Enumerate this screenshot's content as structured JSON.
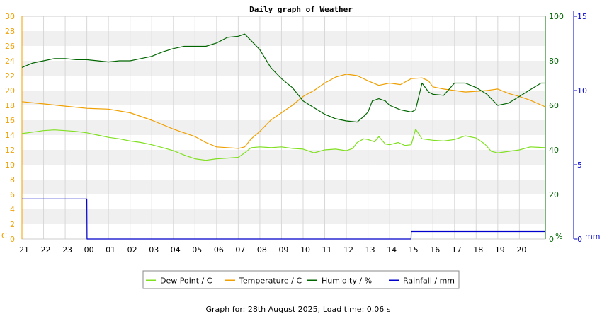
{
  "footer_text": "Graph for: 28th August 2025; Load time: 0.06 s",
  "chart_data": {
    "type": "line",
    "title": "Daily graph of Weather",
    "x": {
      "tick_labels": [
        "21",
        "22",
        "23",
        "00",
        "01",
        "02",
        "03",
        "04",
        "05",
        "06",
        "07",
        "08",
        "09",
        "10",
        "11",
        "12",
        "13",
        "14",
        "15",
        "16",
        "17",
        "18",
        "19",
        "20"
      ],
      "range": [
        0,
        24.2
      ]
    },
    "axes": {
      "left": {
        "unit_label": "C",
        "range": [
          0,
          30
        ],
        "ticks": [
          0,
          2,
          4,
          6,
          8,
          10,
          12,
          14,
          16,
          18,
          20,
          22,
          24,
          26,
          28,
          30
        ],
        "color": "#f0a000"
      },
      "right_1": {
        "unit_label": "%",
        "range": [
          0,
          100
        ],
        "ticks": [
          0,
          20,
          40,
          60,
          80,
          100
        ],
        "color": "#006600"
      },
      "right_2": {
        "unit_label": "mm",
        "range": [
          0,
          15
        ],
        "ticks": [
          0,
          5,
          10,
          15
        ],
        "color": "#0000cc"
      }
    },
    "grid": true,
    "legend_position": "bottom",
    "series": [
      {
        "name": "Dew Point / C",
        "axis": "left",
        "color": "#80e020",
        "points": [
          [
            0,
            14.2
          ],
          [
            0.5,
            14.4
          ],
          [
            1,
            14.6
          ],
          [
            1.5,
            14.7
          ],
          [
            2,
            14.6
          ],
          [
            2.5,
            14.5
          ],
          [
            3,
            14.3
          ],
          [
            3.5,
            14.0
          ],
          [
            4,
            13.7
          ],
          [
            4.5,
            13.5
          ],
          [
            5,
            13.2
          ],
          [
            5.5,
            13.0
          ],
          [
            6,
            12.7
          ],
          [
            6.5,
            12.3
          ],
          [
            7,
            11.9
          ],
          [
            7.5,
            11.3
          ],
          [
            8,
            10.8
          ],
          [
            8.5,
            10.6
          ],
          [
            9,
            10.8
          ],
          [
            9.5,
            10.9
          ],
          [
            10,
            11.0
          ],
          [
            10.3,
            11.6
          ],
          [
            10.6,
            12.3
          ],
          [
            11,
            12.4
          ],
          [
            11.5,
            12.3
          ],
          [
            12,
            12.4
          ],
          [
            12.5,
            12.2
          ],
          [
            13,
            12.1
          ],
          [
            13.5,
            11.6
          ],
          [
            14,
            12.0
          ],
          [
            14.5,
            12.1
          ],
          [
            15,
            11.9
          ],
          [
            15.3,
            12.2
          ],
          [
            15.5,
            13.0
          ],
          [
            15.8,
            13.5
          ],
          [
            16,
            13.4
          ],
          [
            16.3,
            13.1
          ],
          [
            16.5,
            13.8
          ],
          [
            16.8,
            12.8
          ],
          [
            17,
            12.7
          ],
          [
            17.4,
            13.0
          ],
          [
            17.7,
            12.6
          ],
          [
            18,
            12.7
          ],
          [
            18.2,
            14.8
          ],
          [
            18.5,
            13.5
          ],
          [
            19,
            13.3
          ],
          [
            19.5,
            13.2
          ],
          [
            20,
            13.4
          ],
          [
            20.5,
            13.9
          ],
          [
            21,
            13.6
          ],
          [
            21.4,
            12.8
          ],
          [
            21.7,
            11.8
          ],
          [
            22,
            11.6
          ],
          [
            22.5,
            11.8
          ],
          [
            23,
            12.0
          ],
          [
            23.5,
            12.4
          ],
          [
            24.2,
            12.3
          ]
        ]
      },
      {
        "name": "Temperature / C",
        "axis": "left",
        "color": "#f0a000",
        "points": [
          [
            0,
            18.5
          ],
          [
            1,
            18.2
          ],
          [
            2,
            17.9
          ],
          [
            3,
            17.6
          ],
          [
            4,
            17.5
          ],
          [
            5,
            17.0
          ],
          [
            6,
            16.0
          ],
          [
            7,
            14.8
          ],
          [
            8,
            13.8
          ],
          [
            8.5,
            13.0
          ],
          [
            9,
            12.4
          ],
          [
            9.5,
            12.3
          ],
          [
            10,
            12.2
          ],
          [
            10.3,
            12.4
          ],
          [
            10.6,
            13.5
          ],
          [
            11,
            14.5
          ],
          [
            11.5,
            16.0
          ],
          [
            12,
            17.0
          ],
          [
            12.5,
            18.0
          ],
          [
            13,
            19.2
          ],
          [
            13.5,
            20.0
          ],
          [
            14,
            21.0
          ],
          [
            14.5,
            21.8
          ],
          [
            15,
            22.2
          ],
          [
            15.5,
            22.0
          ],
          [
            16,
            21.3
          ],
          [
            16.5,
            20.7
          ],
          [
            17,
            21.0
          ],
          [
            17.5,
            20.8
          ],
          [
            18,
            21.6
          ],
          [
            18.5,
            21.7
          ],
          [
            18.8,
            21.3
          ],
          [
            19,
            20.5
          ],
          [
            19.5,
            20.2
          ],
          [
            20,
            20.0
          ],
          [
            20.5,
            19.8
          ],
          [
            21,
            19.9
          ],
          [
            21.5,
            20.0
          ],
          [
            22,
            20.2
          ],
          [
            22.5,
            19.6
          ],
          [
            23,
            19.2
          ],
          [
            23.5,
            18.7
          ],
          [
            24.2,
            17.8
          ]
        ]
      },
      {
        "name": "Humidity / %",
        "axis": "right_1",
        "color": "#006600",
        "points": [
          [
            0,
            77
          ],
          [
            0.5,
            79
          ],
          [
            1,
            80
          ],
          [
            1.5,
            81
          ],
          [
            2,
            81
          ],
          [
            2.5,
            80.5
          ],
          [
            3,
            80.5
          ],
          [
            3.5,
            80
          ],
          [
            4,
            79.5
          ],
          [
            4.5,
            80
          ],
          [
            5,
            80
          ],
          [
            5.5,
            81
          ],
          [
            6,
            82
          ],
          [
            6.5,
            84
          ],
          [
            7,
            85.5
          ],
          [
            7.5,
            86.5
          ],
          [
            8,
            86.5
          ],
          [
            8.5,
            86.5
          ],
          [
            9,
            88
          ],
          [
            9.5,
            90.5
          ],
          [
            10,
            91
          ],
          [
            10.3,
            92
          ],
          [
            10.6,
            89
          ],
          [
            11,
            85
          ],
          [
            11.5,
            77
          ],
          [
            12,
            72
          ],
          [
            12.5,
            68
          ],
          [
            13,
            62
          ],
          [
            13.5,
            59
          ],
          [
            14,
            56
          ],
          [
            14.5,
            54
          ],
          [
            15,
            53
          ],
          [
            15.5,
            52.5
          ],
          [
            15.8,
            55
          ],
          [
            16,
            57
          ],
          [
            16.2,
            62
          ],
          [
            16.5,
            63
          ],
          [
            16.8,
            62
          ],
          [
            17,
            60
          ],
          [
            17.5,
            58
          ],
          [
            18,
            57
          ],
          [
            18.2,
            58
          ],
          [
            18.5,
            70
          ],
          [
            18.8,
            66
          ],
          [
            19,
            65
          ],
          [
            19.5,
            64.5
          ],
          [
            20,
            70
          ],
          [
            20.5,
            70
          ],
          [
            21,
            68
          ],
          [
            21.5,
            65
          ],
          [
            22,
            60
          ],
          [
            22.5,
            61
          ],
          [
            23,
            64
          ],
          [
            23.5,
            67
          ],
          [
            24,
            70
          ],
          [
            24.2,
            70
          ]
        ]
      },
      {
        "name": "Rainfall / mm",
        "axis": "right_2",
        "color": "#0000cc",
        "points": [
          [
            0,
            2.7
          ],
          [
            3.0,
            2.7
          ],
          [
            3.01,
            0
          ],
          [
            17.99,
            0
          ],
          [
            18.0,
            0.5
          ],
          [
            24.2,
            0.5
          ]
        ]
      }
    ]
  }
}
